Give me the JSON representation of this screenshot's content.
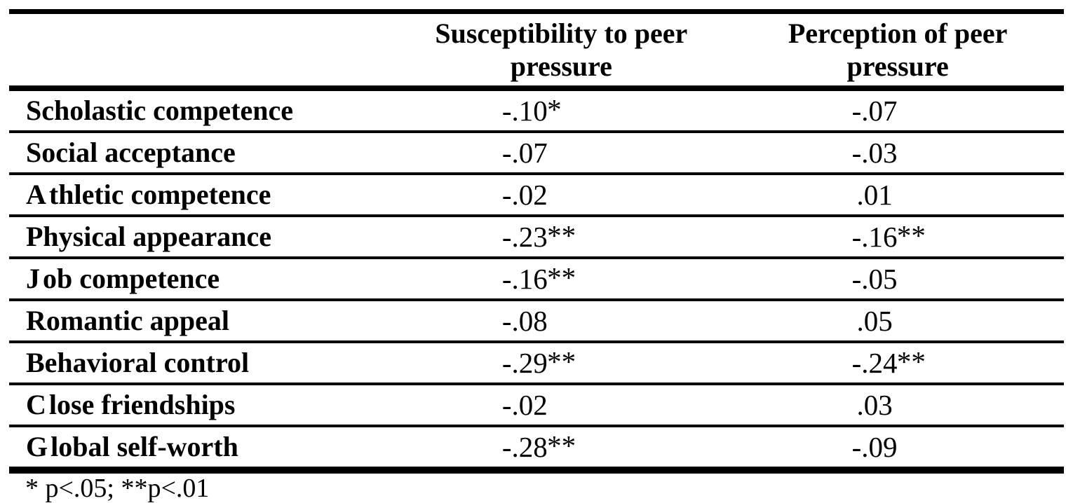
{
  "table": {
    "columns": [
      {
        "label": "Susceptibility to peer pressure",
        "lines": [
          "Susceptibility to peer",
          "pressure"
        ]
      },
      {
        "label": "Perception of peer pressure",
        "lines": [
          "Perception of peer",
          "pressure"
        ]
      }
    ],
    "rows": [
      {
        "label": "Scholastic competence",
        "susceptibility": "-.10",
        "susceptibility_sig": "*",
        "perception": "-.07",
        "perception_sig": ""
      },
      {
        "label": "Social acceptance",
        "susceptibility": "-.07",
        "susceptibility_sig": "",
        "perception": "-.03",
        "perception_sig": ""
      },
      {
        "label": "Athletic competence",
        "susceptibility": "-.02",
        "susceptibility_sig": "",
        "perception": ".01",
        "perception_sig": ""
      },
      {
        "label": "Physical appearance",
        "susceptibility": "-.23",
        "susceptibility_sig": "**",
        "perception": "-.16",
        "perception_sig": "**"
      },
      {
        "label": "Job competence",
        "susceptibility": "-.16",
        "susceptibility_sig": "**",
        "perception": "-.05",
        "perception_sig": ""
      },
      {
        "label": "Romantic appeal",
        "susceptibility": "-.08",
        "susceptibility_sig": "",
        "perception": ".05",
        "perception_sig": ""
      },
      {
        "label": "Behavioral control",
        "susceptibility": "-.29",
        "susceptibility_sig": "**",
        "perception": "-.24",
        "perception_sig": "**"
      },
      {
        "label": "Close friendships",
        "susceptibility": "-.02",
        "susceptibility_sig": "",
        "perception": ".03",
        "perception_sig": ""
      },
      {
        "label": "Global self-worth",
        "susceptibility": "-.28",
        "susceptibility_sig": "**",
        "perception": "-.09",
        "perception_sig": ""
      }
    ],
    "footnote": "* p<.05; **p<.01"
  },
  "colors": {
    "text": "#000000",
    "background": "#ffffff",
    "rule": "#000000"
  }
}
